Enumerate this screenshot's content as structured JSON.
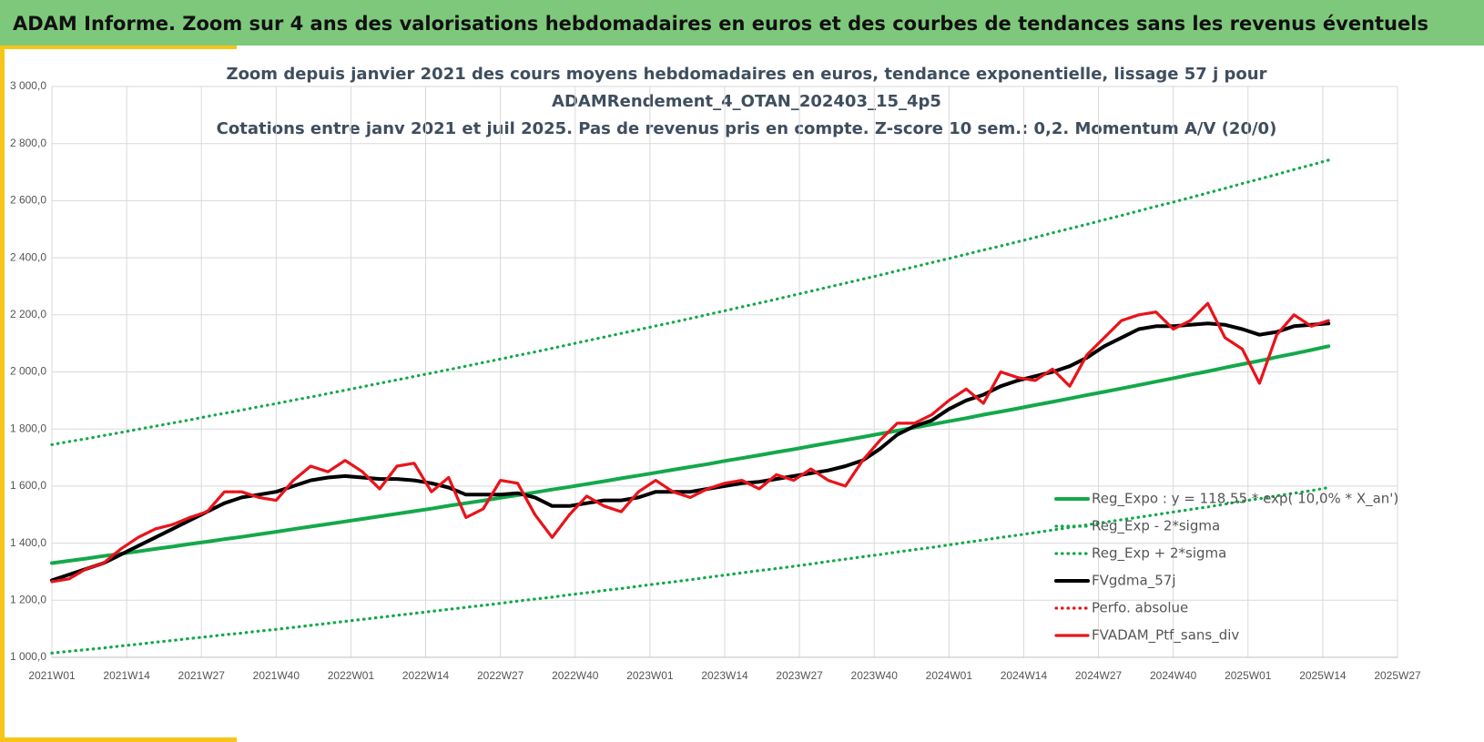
{
  "page_title": "ADAM Informe. Zoom sur 4 ans des valorisations hebdomadaires en euros et des courbes de tendances sans les revenus éventuels",
  "chart_data": {
    "type": "line",
    "title": [
      "Zoom depuis janvier 2021 des cours moyens hebdomadaires  en euros, tendance exponentielle, lissage 57 j pour",
      "ADAMRendement_4_OTAN_202403_15_4p5",
      "Cotations  entre janv 2021 et juil 2025. Pas de revenus pris en compte. Z-score 10 sem.: 0,2. Momentum  A/V (20/0)"
    ],
    "x": [
      0,
      3,
      6,
      9,
      12,
      15,
      18,
      21,
      24,
      27,
      30,
      33,
      36,
      39,
      42,
      45,
      48,
      51,
      54,
      57,
      60,
      63,
      66,
      69,
      72,
      75,
      78,
      81,
      84,
      87,
      90,
      93,
      96,
      99,
      102,
      105,
      108,
      111,
      114,
      117,
      120,
      123,
      126,
      129,
      132,
      135,
      138,
      141,
      144,
      147,
      150,
      153,
      156,
      159,
      162,
      165,
      168,
      171,
      174,
      177,
      180,
      183,
      186,
      189,
      192,
      195,
      198,
      201,
      204,
      207,
      210,
      213,
      216,
      219,
      222
    ],
    "xlim": [
      0,
      222
    ],
    "xticks": [
      {
        "value": 0,
        "label": "2021W01"
      },
      {
        "value": 13,
        "label": "2021W14"
      },
      {
        "value": 26,
        "label": "2021W27"
      },
      {
        "value": 39,
        "label": "2021W40"
      },
      {
        "value": 52,
        "label": "2022W01"
      },
      {
        "value": 65,
        "label": "2022W14"
      },
      {
        "value": 78,
        "label": "2022W27"
      },
      {
        "value": 91,
        "label": "2022W40"
      },
      {
        "value": 104,
        "label": "2023W01"
      },
      {
        "value": 117,
        "label": "2023W14"
      },
      {
        "value": 130,
        "label": "2023W27"
      },
      {
        "value": 143,
        "label": "2023W40"
      },
      {
        "value": 156,
        "label": "2024W01"
      },
      {
        "value": 169,
        "label": "2024W14"
      },
      {
        "value": 182,
        "label": "2024W27"
      },
      {
        "value": 195,
        "label": "2024W40"
      },
      {
        "value": 208,
        "label": "2025W01"
      },
      {
        "value": 221,
        "label": "2025W14"
      },
      {
        "value": 234,
        "label": "2025W27"
      }
    ],
    "ylim": [
      1000,
      3000
    ],
    "yticks": [
      {
        "value": 1000,
        "label": "1 000,0"
      },
      {
        "value": 1200,
        "label": "1 200,0"
      },
      {
        "value": 1400,
        "label": "1 400,0"
      },
      {
        "value": 1600,
        "label": "1 600,0"
      },
      {
        "value": 1800,
        "label": "1 800,0"
      },
      {
        "value": 2000,
        "label": "2 000,0"
      },
      {
        "value": 2200,
        "label": "2 200,0"
      },
      {
        "value": 2400,
        "label": "2 400,0"
      },
      {
        "value": 2600,
        "label": "2 600,0"
      },
      {
        "value": 2800,
        "label": "2 800,0"
      },
      {
        "value": 3000,
        "label": "3 000,0"
      }
    ],
    "grid": true,
    "series": [
      {
        "name": "Reg_Expo : y = 118,55 * exp( 10,0% * X_an')",
        "color": "#14a84b",
        "line_style": "solid",
        "values": [
          1330,
          1338,
          1346,
          1355,
          1363,
          1371,
          1380,
          1388,
          1397,
          1405,
          1414,
          1422,
          1431,
          1440,
          1449,
          1458,
          1467,
          1476,
          1485,
          1494,
          1503,
          1512,
          1521,
          1531,
          1540,
          1549,
          1559,
          1568,
          1578,
          1588,
          1597,
          1607,
          1617,
          1627,
          1637,
          1647,
          1657,
          1667,
          1677,
          1688,
          1698,
          1708,
          1719,
          1729,
          1740,
          1751,
          1761,
          1772,
          1783,
          1794,
          1805,
          1816,
          1827,
          1838,
          1850,
          1861,
          1872,
          1884,
          1895,
          1907,
          1919,
          1930,
          1942,
          1954,
          1966,
          1978,
          1990,
          2002,
          2015,
          2027,
          2039,
          2052,
          2064,
          2077,
          2090
        ]
      },
      {
        "name": "Reg_Exp - 2*sigma",
        "color": "#14a84b",
        "line_style": "dotted",
        "values": [
          1015,
          1021,
          1027,
          1033,
          1040,
          1046,
          1053,
          1059,
          1066,
          1072,
          1079,
          1085,
          1092,
          1098,
          1105,
          1112,
          1119,
          1126,
          1133,
          1140,
          1147,
          1154,
          1161,
          1168,
          1175,
          1182,
          1189,
          1197,
          1204,
          1211,
          1219,
          1226,
          1234,
          1241,
          1249,
          1257,
          1264,
          1272,
          1280,
          1288,
          1296,
          1304,
          1311,
          1319,
          1327,
          1336,
          1344,
          1352,
          1360,
          1369,
          1377,
          1385,
          1394,
          1403,
          1411,
          1420,
          1428,
          1437,
          1446,
          1455,
          1464,
          1473,
          1482,
          1491,
          1500,
          1509,
          1518,
          1527,
          1537,
          1547,
          1556,
          1566,
          1575,
          1584,
          1595
        ]
      },
      {
        "name": "Reg_Exp + 2*sigma",
        "color": "#14a84b",
        "line_style": "dotted",
        "values": [
          1745,
          1756,
          1766,
          1777,
          1788,
          1799,
          1810,
          1821,
          1832,
          1844,
          1855,
          1866,
          1878,
          1889,
          1901,
          1912,
          1924,
          1936,
          1948,
          1960,
          1972,
          1984,
          1996,
          2008,
          2020,
          2033,
          2045,
          2058,
          2070,
          2083,
          2096,
          2109,
          2122,
          2135,
          2148,
          2161,
          2174,
          2187,
          2201,
          2214,
          2228,
          2241,
          2255,
          2269,
          2283,
          2297,
          2311,
          2325,
          2339,
          2354,
          2368,
          2383,
          2397,
          2412,
          2427,
          2441,
          2456,
          2471,
          2487,
          2502,
          2517,
          2533,
          2548,
          2564,
          2580,
          2595,
          2611,
          2627,
          2643,
          2660,
          2676,
          2692,
          2709,
          2725,
          2742
        ]
      },
      {
        "name": "FVgdma_57j",
        "color": "#000000",
        "line_style": "solid",
        "values": [
          1270,
          1290,
          1310,
          1330,
          1360,
          1390,
          1420,
          1450,
          1480,
          1510,
          1540,
          1560,
          1570,
          1580,
          1600,
          1620,
          1630,
          1635,
          1630,
          1625,
          1625,
          1620,
          1610,
          1595,
          1570,
          1570,
          1570,
          1575,
          1560,
          1530,
          1530,
          1540,
          1550,
          1550,
          1560,
          1580,
          1580,
          1580,
          1590,
          1600,
          1610,
          1615,
          1625,
          1635,
          1645,
          1655,
          1670,
          1690,
          1730,
          1780,
          1810,
          1830,
          1870,
          1900,
          1920,
          1950,
          1970,
          1985,
          2000,
          2020,
          2050,
          2090,
          2120,
          2150,
          2160,
          2160,
          2165,
          2170,
          2165,
          2150,
          2130,
          2140,
          2160,
          2165,
          2170
        ]
      },
      {
        "name": "Perfo. absolue",
        "color": "#e8141b",
        "line_style": "dotted",
        "values": [
          1265,
          1275,
          1310,
          1330,
          1380,
          1420,
          1450,
          1465,
          1490,
          1510,
          1580,
          1580,
          1560,
          1550,
          1620,
          1670,
          1650,
          1690,
          1650,
          1590,
          1670,
          1680,
          1580,
          1630,
          1490,
          1520,
          1620,
          1610,
          1500,
          1420,
          1500,
          1565,
          1530,
          1510,
          1580,
          1620,
          1580,
          1560,
          1590,
          1610,
          1620,
          1590,
          1640,
          1620,
          1660,
          1620,
          1600,
          1690,
          1760,
          1820,
          1820,
          1850,
          1900,
          1940,
          1890,
          2000,
          1980,
          1970,
          2010,
          1950,
          2060,
          2120,
          2180,
          2200,
          2210,
          2150,
          2180,
          2240,
          2120,
          2080,
          1960,
          2130,
          2200,
          2160,
          2180
        ]
      },
      {
        "name": "FVADAM_Ptf_sans_div",
        "color": "#e8141b",
        "line_style": "solid",
        "values": [
          1265,
          1275,
          1310,
          1330,
          1380,
          1420,
          1450,
          1465,
          1490,
          1510,
          1580,
          1580,
          1560,
          1550,
          1620,
          1670,
          1650,
          1690,
          1650,
          1590,
          1670,
          1680,
          1580,
          1630,
          1490,
          1520,
          1620,
          1610,
          1500,
          1420,
          1500,
          1565,
          1530,
          1510,
          1580,
          1620,
          1580,
          1560,
          1590,
          1610,
          1620,
          1590,
          1640,
          1620,
          1660,
          1620,
          1600,
          1690,
          1760,
          1820,
          1820,
          1850,
          1900,
          1940,
          1890,
          2000,
          1980,
          1970,
          2010,
          1950,
          2060,
          2120,
          2180,
          2200,
          2210,
          2150,
          2180,
          2240,
          2120,
          2080,
          1960,
          2130,
          2200,
          2160,
          2180
        ]
      }
    ]
  }
}
